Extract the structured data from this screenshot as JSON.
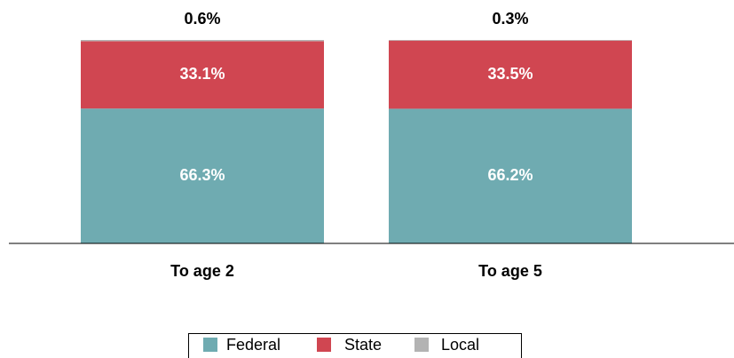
{
  "chart_data": {
    "type": "stacked_bar",
    "categories": [
      "To age 2",
      "To age 5"
    ],
    "series": [
      {
        "name": "Federal",
        "color": "#6fabb1",
        "values": [
          66.3,
          66.2
        ],
        "value_labels": [
          "66.3%",
          "66.2%"
        ]
      },
      {
        "name": "State",
        "color": "#d04651",
        "values": [
          33.1,
          33.5
        ],
        "value_labels": [
          "33.1%",
          "33.5%"
        ]
      },
      {
        "name": "Local",
        "color": "#b3b3b3",
        "values": [
          0.6,
          0.3
        ],
        "value_labels": [
          "0.6%",
          "0.3%"
        ]
      }
    ],
    "ylim": [
      0,
      100
    ]
  }
}
